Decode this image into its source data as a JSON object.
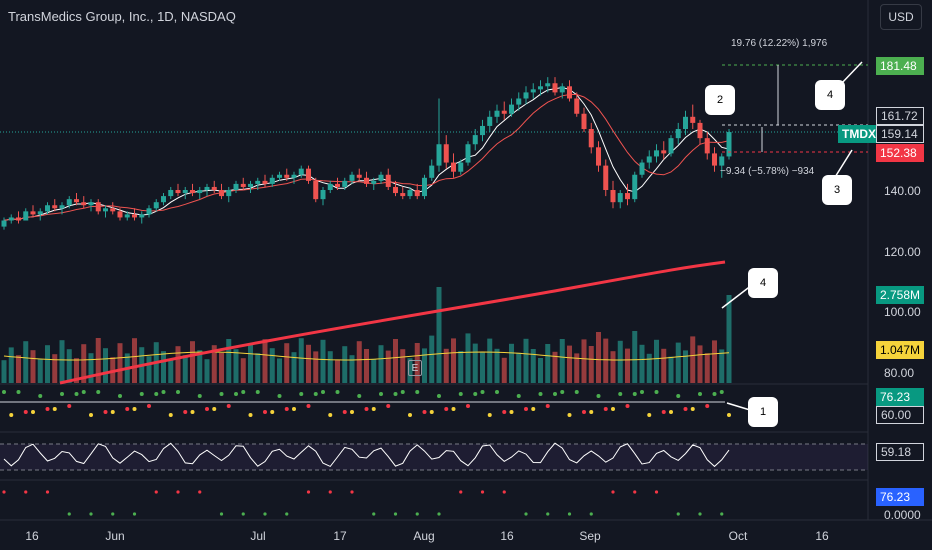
{
  "header": {
    "title": "TransMedics Group, Inc., 1D, NASDAQ",
    "currency": "USD"
  },
  "chart_data": {
    "type": "candlestick",
    "symbol": "TMDX",
    "price_axis": [
      "140.00",
      "120.00",
      "100.00",
      "80.00"
    ],
    "x_axis": [
      "16",
      "Jun",
      "Jul",
      "17",
      "Aug",
      "16",
      "Sep",
      "Oct",
      "16"
    ],
    "candles": [
      [
        128,
        131,
        127,
        130
      ],
      [
        130,
        132,
        129,
        131
      ],
      [
        131,
        133,
        129,
        130
      ],
      [
        130,
        134,
        130,
        133
      ],
      [
        133,
        135,
        131,
        132
      ],
      [
        132,
        134,
        130,
        133
      ],
      [
        133,
        136,
        132,
        135
      ],
      [
        135,
        137,
        133,
        134
      ],
      [
        134,
        136,
        132,
        135
      ],
      [
        135,
        138,
        134,
        137
      ],
      [
        137,
        139,
        135,
        136
      ],
      [
        136,
        138,
        134,
        135
      ],
      [
        135,
        137,
        133,
        136
      ],
      [
        136,
        137,
        132,
        133
      ],
      [
        133,
        135,
        131,
        134
      ],
      [
        134,
        136,
        132,
        133
      ],
      [
        133,
        134,
        130,
        131
      ],
      [
        131,
        133,
        130,
        132
      ],
      [
        132,
        134,
        130,
        131
      ],
      [
        131,
        133,
        129,
        132
      ],
      [
        132,
        135,
        131,
        134
      ],
      [
        134,
        137,
        133,
        136
      ],
      [
        136,
        139,
        135,
        138
      ],
      [
        138,
        141,
        137,
        140
      ],
      [
        140,
        142,
        138,
        139
      ],
      [
        139,
        141,
        137,
        140
      ],
      [
        140,
        142,
        138,
        139
      ],
      [
        139,
        141,
        137,
        140
      ],
      [
        140,
        142,
        138,
        141
      ],
      [
        141,
        143,
        139,
        140
      ],
      [
        140,
        142,
        137,
        138
      ],
      [
        138,
        141,
        136,
        140
      ],
      [
        140,
        143,
        139,
        142
      ],
      [
        142,
        144,
        140,
        141
      ],
      [
        141,
        143,
        139,
        142
      ],
      [
        142,
        144,
        140,
        143
      ],
      [
        143,
        145,
        141,
        142
      ],
      [
        142,
        145,
        141,
        144
      ],
      [
        144,
        146,
        143,
        145
      ],
      [
        145,
        147,
        143,
        144
      ],
      [
        144,
        146,
        142,
        145
      ],
      [
        145,
        148,
        144,
        147
      ],
      [
        147,
        148,
        142,
        143
      ],
      [
        143,
        144,
        136,
        137
      ],
      [
        137,
        141,
        135,
        140
      ],
      [
        140,
        143,
        139,
        142
      ],
      [
        142,
        144,
        140,
        141
      ],
      [
        141,
        144,
        140,
        143
      ],
      [
        143,
        146,
        142,
        145
      ],
      [
        145,
        147,
        143,
        144
      ],
      [
        144,
        146,
        141,
        142
      ],
      [
        142,
        144,
        140,
        143
      ],
      [
        143,
        146,
        142,
        145
      ],
      [
        145,
        147,
        140,
        141
      ],
      [
        141,
        143,
        138,
        139
      ],
      [
        139,
        141,
        137,
        138
      ],
      [
        138,
        141,
        137,
        140
      ],
      [
        140,
        142,
        137,
        138
      ],
      [
        138,
        145,
        137,
        144
      ],
      [
        144,
        150,
        143,
        148
      ],
      [
        148,
        170,
        146,
        155
      ],
      [
        155,
        158,
        147,
        149
      ],
      [
        149,
        152,
        144,
        146
      ],
      [
        146,
        150,
        145,
        149
      ],
      [
        149,
        156,
        148,
        155
      ],
      [
        155,
        160,
        153,
        158
      ],
      [
        158,
        163,
        156,
        161
      ],
      [
        161,
        166,
        159,
        164
      ],
      [
        164,
        168,
        162,
        166
      ],
      [
        166,
        169,
        163,
        165
      ],
      [
        165,
        170,
        164,
        168
      ],
      [
        168,
        172,
        166,
        170
      ],
      [
        170,
        174,
        168,
        172
      ],
      [
        172,
        175,
        170,
        173
      ],
      [
        173,
        176,
        171,
        174
      ],
      [
        174,
        177,
        172,
        175
      ],
      [
        175,
        177,
        171,
        172
      ],
      [
        172,
        175,
        170,
        174
      ],
      [
        174,
        176,
        169,
        170
      ],
      [
        170,
        172,
        164,
        165
      ],
      [
        165,
        167,
        159,
        160
      ],
      [
        160,
        162,
        152,
        154
      ],
      [
        154,
        156,
        146,
        148
      ],
      [
        148,
        150,
        138,
        140
      ],
      [
        140,
        143,
        134,
        136
      ],
      [
        136,
        140,
        134,
        139
      ],
      [
        139,
        142,
        135,
        137
      ],
      [
        137,
        146,
        136,
        145
      ],
      [
        145,
        150,
        144,
        149
      ],
      [
        149,
        153,
        147,
        151
      ],
      [
        151,
        155,
        149,
        153
      ],
      [
        153,
        156,
        150,
        152
      ],
      [
        152,
        158,
        151,
        157
      ],
      [
        157,
        162,
        155,
        160
      ],
      [
        160,
        166,
        158,
        164
      ],
      [
        164,
        168,
        160,
        162
      ],
      [
        162,
        163,
        155,
        157
      ],
      [
        157,
        159,
        150,
        152
      ],
      [
        152,
        154,
        146,
        148
      ],
      [
        148,
        152,
        144,
        151
      ],
      [
        151,
        160,
        150,
        159
      ]
    ],
    "price_labels": {
      "target": "181.48",
      "high": "161.72",
      "last": "159.14",
      "low": "152.38",
      "symbol": "TMDX"
    },
    "volume_labels": {
      "last": "2.758M",
      "ma": "1.047M"
    },
    "indicator_labels": {
      "a": "76.23",
      "b": "60.00",
      "rsi": "59.18",
      "c": "76.23",
      "zero": "0.0000"
    },
    "annotations": {
      "upper": "19.76 (12.22%) 1,976",
      "lower": "−9.34 (−5.78%) −934"
    },
    "callouts": [
      "1",
      "2",
      "3",
      "4",
      "4"
    ],
    "earnings_marker": "E",
    "colors": {
      "up": "#26a69a",
      "down": "#ef5350",
      "ma_fast": "#ffffff",
      "ma_slow": "#ef5350",
      "ma200": "#f23645",
      "vol_ma": "#f5d33b",
      "target": "#4caf50"
    }
  }
}
